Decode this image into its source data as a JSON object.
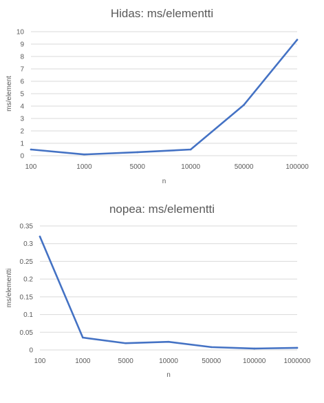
{
  "chart_data": [
    {
      "type": "line",
      "title": "Hidas: ms/elementti",
      "xlabel": "n",
      "ylabel": "ms/element",
      "categories": [
        "100",
        "1000",
        "5000",
        "10000",
        "50000",
        "100000"
      ],
      "series": [
        {
          "values": [
            0.5,
            0.1,
            0.28,
            0.5,
            4.1,
            9.35
          ]
        }
      ],
      "yticks": [
        "0",
        "1",
        "2",
        "3",
        "4",
        "5",
        "6",
        "7",
        "8",
        "9",
        "10"
      ],
      "ylim": [
        0,
        10
      ],
      "grid": true,
      "color": "#4472C4"
    },
    {
      "type": "line",
      "title": "nopea: ms/elementti",
      "xlabel": "n",
      "ylabel": "ms/elementti",
      "categories": [
        "100",
        "1000",
        "5000",
        "10000",
        "50000",
        "100000",
        "1000000"
      ],
      "series": [
        {
          "values": [
            0.32,
            0.035,
            0.019,
            0.023,
            0.008,
            0.004,
            0.006
          ]
        }
      ],
      "yticks": [
        "0",
        "0.05",
        "0.1",
        "0.15",
        "0.2",
        "0.25",
        "0.3",
        "0.35"
      ],
      "ylim": [
        0,
        0.35
      ],
      "grid": true,
      "color": "#4472C4"
    }
  ]
}
